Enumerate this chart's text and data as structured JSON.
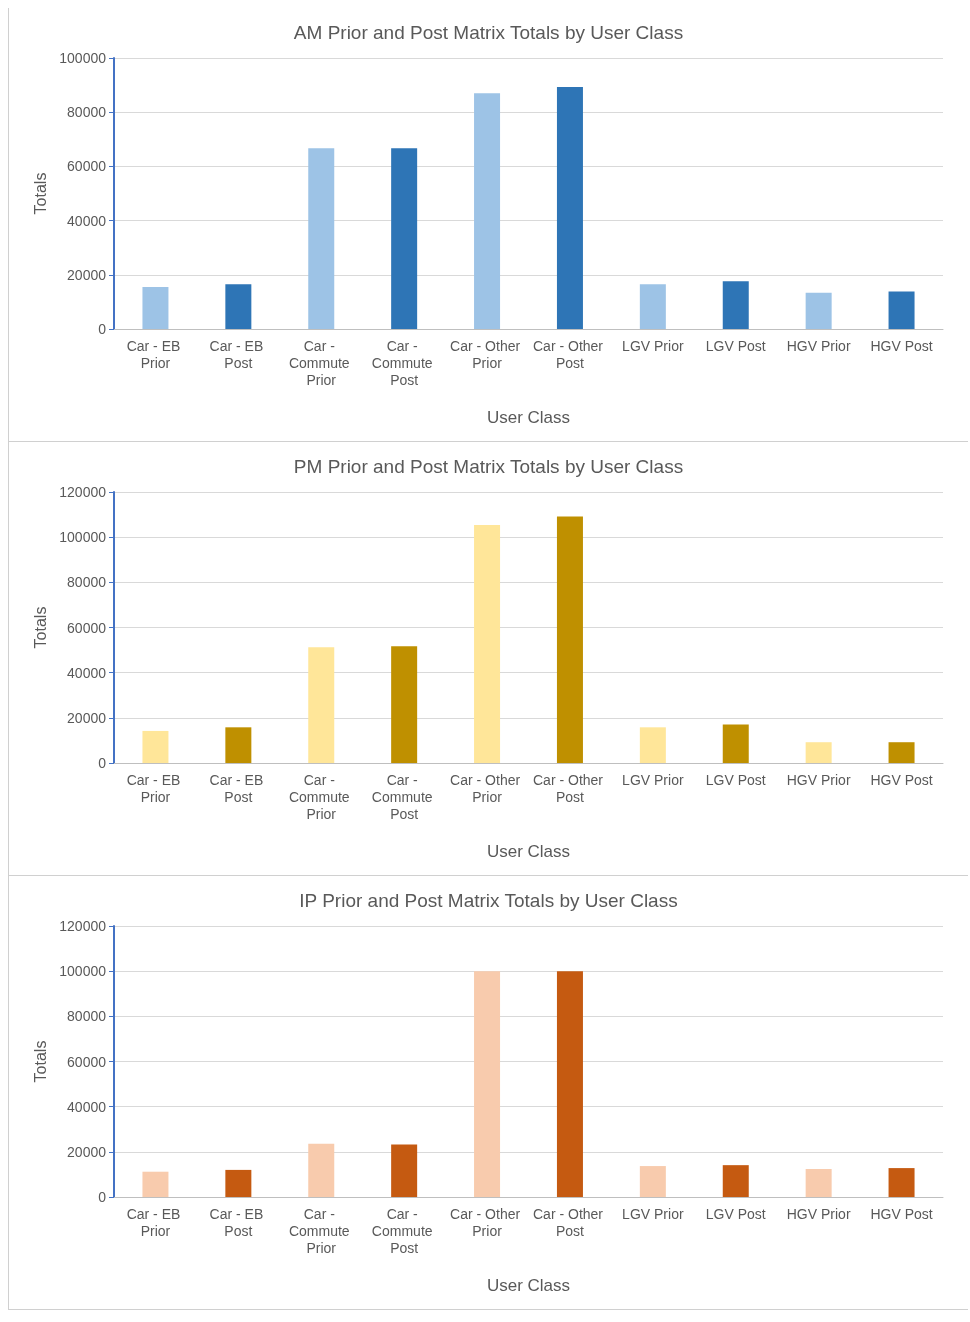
{
  "chart_data": [
    {
      "type": "bar",
      "title": "AM Prior and Post Matrix Totals by User Class",
      "xlabel": "User Class",
      "ylabel": "Totals",
      "categories": [
        "Car - EB Prior",
        "Car - EB Post",
        "Car - Commute Prior",
        "Car - Commute Post",
        "Car - Other Prior",
        "Car - Other Post",
        "LGV Prior",
        "LGV Post",
        "HGV Prior",
        "HGV Post"
      ],
      "values": [
        15500,
        16500,
        66700,
        66700,
        87000,
        89300,
        16500,
        17600,
        13400,
        13800
      ],
      "colors": [
        "#9dc3e6",
        "#2e75b6",
        "#9dc3e6",
        "#2e75b6",
        "#9dc3e6",
        "#2e75b6",
        "#9dc3e6",
        "#2e75b6",
        "#9dc3e6",
        "#2e75b6"
      ],
      "ylim": [
        0,
        100000
      ],
      "yticks": [
        0,
        20000,
        40000,
        60000,
        80000,
        100000
      ],
      "grid": "y"
    },
    {
      "type": "bar",
      "title": "PM Prior and Post Matrix Totals by User Class",
      "xlabel": "User Class",
      "ylabel": "Totals",
      "categories": [
        "Car - EB Prior",
        "Car - EB Post",
        "Car - Commute Prior",
        "Car - Commute Post",
        "Car - Other Prior",
        "Car - Other Post",
        "LGV Prior",
        "LGV Post",
        "HGV Prior",
        "HGV Post"
      ],
      "values": [
        14200,
        15800,
        51200,
        51700,
        105400,
        109200,
        15800,
        17100,
        9200,
        9200
      ],
      "colors": [
        "#ffe699",
        "#bf9000",
        "#ffe699",
        "#bf9000",
        "#ffe699",
        "#bf9000",
        "#ffe699",
        "#bf9000",
        "#ffe699",
        "#bf9000"
      ],
      "ylim": [
        0,
        120000
      ],
      "yticks": [
        0,
        20000,
        40000,
        60000,
        80000,
        100000,
        120000
      ],
      "grid": "y"
    },
    {
      "type": "bar",
      "title": "IP Prior and Post Matrix Totals by User Class",
      "xlabel": "User Class",
      "ylabel": "Totals",
      "categories": [
        "Car - EB Prior",
        "Car - EB Post",
        "Car - Commute Prior",
        "Car - Commute Post",
        "Car - Other Prior",
        "Car - Other Post",
        "LGV Prior",
        "LGV Post",
        "HGV Prior",
        "HGV Post"
      ],
      "values": [
        11200,
        12000,
        23600,
        23200,
        100000,
        100000,
        13700,
        14100,
        12400,
        12800
      ],
      "colors": [
        "#f8cbad",
        "#c55a11",
        "#f8cbad",
        "#c55a11",
        "#f8cbad",
        "#c55a11",
        "#f8cbad",
        "#c55a11",
        "#f8cbad",
        "#c55a11"
      ],
      "ylim": [
        0,
        120000
      ],
      "yticks": [
        0,
        20000,
        40000,
        60000,
        80000,
        100000,
        120000
      ],
      "grid": "y"
    }
  ]
}
